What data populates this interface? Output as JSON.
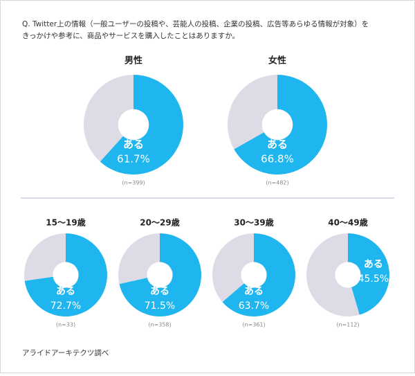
{
  "question": [
    "Q. Twitter上の情報（一般ユーザーの投稿や、芸能人の投稿、企業の投稿、広告等あらゆる情報が対象）を",
    "きっかけや参考に、商品やサービスを購入したことはありますか。"
  ],
  "source": "アライドアーキテクツ調べ",
  "chart_data": [
    {
      "type": "pie",
      "title": "男性",
      "categories": [
        "ある",
        null
      ],
      "values": [
        61.7,
        38.3
      ],
      "value_labels": [
        "61.7%",
        null
      ],
      "colors": [
        "#1fb5ee",
        "#dddce6"
      ],
      "note": "(n=399)"
    },
    {
      "type": "pie",
      "title": "女性",
      "categories": [
        "ある",
        null
      ],
      "values": [
        66.8,
        33.2
      ],
      "value_labels": [
        "66.8%",
        null
      ],
      "colors": [
        "#1fb5ee",
        "#dddce6"
      ],
      "note": "(n=482)"
    },
    {
      "type": "pie",
      "title": "15〜19歳",
      "categories": [
        "ある",
        null
      ],
      "values": [
        72.7,
        27.3
      ],
      "value_labels": [
        "72.7%",
        null
      ],
      "colors": [
        "#1fb5ee",
        "#dddce6"
      ],
      "note": "(n=33)"
    },
    {
      "type": "pie",
      "title": "20〜29歳",
      "categories": [
        "ある",
        null
      ],
      "values": [
        71.5,
        28.5
      ],
      "value_labels": [
        "71.5%",
        null
      ],
      "colors": [
        "#1fb5ee",
        "#dddce6"
      ],
      "note": "(n=358)"
    },
    {
      "type": "pie",
      "title": "30〜39歳",
      "categories": [
        "ある",
        null
      ],
      "values": [
        63.7,
        36.3
      ],
      "value_labels": [
        "63.7%",
        null
      ],
      "colors": [
        "#1fb5ee",
        "#dddce6"
      ],
      "note": "(n=361)"
    },
    {
      "type": "pie",
      "title": "40〜49歳",
      "categories": [
        "ある",
        null
      ],
      "values": [
        45.5,
        54.5
      ],
      "value_labels": [
        "45.5%",
        null
      ],
      "colors": [
        "#1fb5ee",
        "#dddce6"
      ],
      "note": "(n=112)"
    }
  ]
}
